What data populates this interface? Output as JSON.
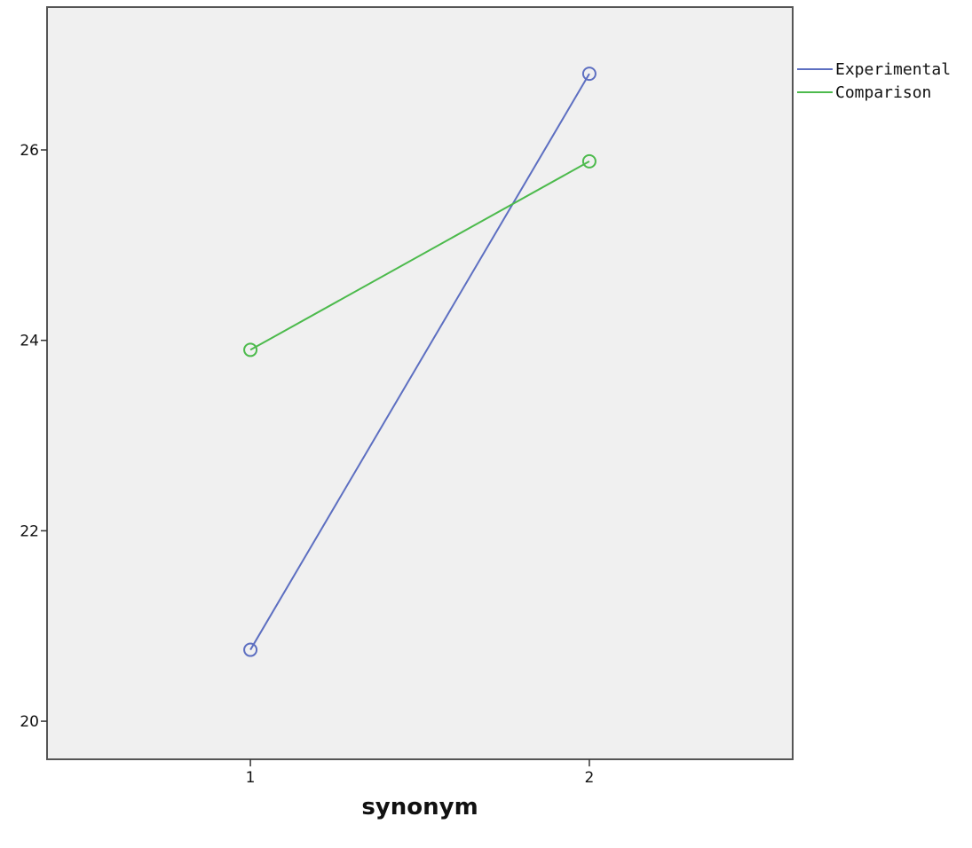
{
  "chart_data": {
    "type": "line",
    "title": "",
    "xlabel": "synonym",
    "ylabel": "",
    "categories": [
      "1",
      "2"
    ],
    "ylim": [
      19.6,
      27.5
    ],
    "yticks": [
      20,
      22,
      24,
      26
    ],
    "xlim": [
      0.4,
      2.6
    ],
    "grid": false,
    "legend_position": "top-right outside",
    "background_color": "#f0f0f0",
    "series": [
      {
        "name": "Experimental",
        "values": [
          20.75,
          26.8
        ],
        "color": "#5d6fc1",
        "marker": "open-circle"
      },
      {
        "name": "Comparison",
        "values": [
          23.9,
          25.88
        ],
        "color": "#4cba4c",
        "marker": "open-circle"
      }
    ]
  }
}
